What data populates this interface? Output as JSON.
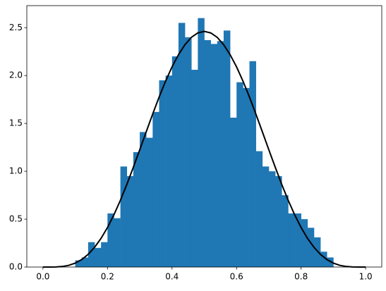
{
  "chart_data": {
    "type": "histogram",
    "bins": [
      0.1,
      0.12,
      0.14,
      0.16,
      0.18,
      0.2,
      0.22,
      0.24,
      0.26,
      0.28,
      0.3,
      0.32,
      0.34,
      0.36,
      0.38,
      0.4,
      0.42,
      0.44,
      0.46,
      0.48,
      0.5,
      0.52,
      0.54,
      0.56,
      0.58,
      0.6,
      0.62,
      0.64,
      0.66,
      0.68,
      0.7,
      0.72,
      0.74,
      0.76,
      0.78,
      0.8,
      0.82,
      0.84,
      0.86,
      0.88,
      0.9
    ],
    "values": [
      0.07,
      0.1,
      0.26,
      0.2,
      0.26,
      0.56,
      0.51,
      1.05,
      0.95,
      1.2,
      1.41,
      1.35,
      1.62,
      1.95,
      2.0,
      2.2,
      2.55,
      2.4,
      2.06,
      2.6,
      2.37,
      2.33,
      2.36,
      2.47,
      1.56,
      1.93,
      1.87,
      2.15,
      1.21,
      1.05,
      1.0,
      0.95,
      0.75,
      0.56,
      0.56,
      0.5,
      0.41,
      0.31,
      0.16,
      0.1
    ],
    "color": "#1f77b4",
    "curve": {
      "color": "#000000",
      "x": [
        0,
        0.02,
        0.04,
        0.06,
        0.08,
        0.1,
        0.12,
        0.14,
        0.16,
        0.18,
        0.2,
        0.22,
        0.24,
        0.26,
        0.28,
        0.3,
        0.32,
        0.34,
        0.36,
        0.38,
        0.4,
        0.42,
        0.44,
        0.46,
        0.48,
        0.5,
        0.52,
        0.54,
        0.56,
        0.58,
        0.6,
        0.62,
        0.64,
        0.66,
        0.68,
        0.7,
        0.72,
        0.74,
        0.76,
        0.78,
        0.8,
        0.82,
        0.84,
        0.86,
        0.88,
        0.9,
        0.92,
        0.94,
        0.96,
        0.98,
        1.0
      ],
      "values": [
        0,
        0.0,
        0.001,
        0.006,
        0.018,
        0.041,
        0.078,
        0.132,
        0.206,
        0.299,
        0.413,
        0.546,
        0.697,
        0.863,
        1.041,
        1.225,
        1.412,
        1.597,
        1.775,
        1.941,
        2.09,
        2.218,
        2.322,
        2.399,
        2.445,
        2.461,
        2.445,
        2.399,
        2.322,
        2.218,
        2.09,
        1.941,
        1.775,
        1.597,
        1.412,
        1.225,
        1.041,
        0.863,
        0.697,
        0.546,
        0.413,
        0.299,
        0.206,
        0.132,
        0.078,
        0.041,
        0.018,
        0.006,
        0.001,
        0.0,
        0
      ]
    },
    "xlim": [
      -0.05,
      1.05
    ],
    "ylim": [
      0,
      2.73
    ],
    "xticks": [
      {
        "value": 0,
        "label": "0.0"
      },
      0.2,
      0.4,
      0.6,
      0.8,
      {
        "value": 1,
        "label": "1.0"
      }
    ],
    "yticks": [
      {
        "value": 0,
        "label": "0.0"
      },
      0.5,
      {
        "value": 1,
        "label": "1.0"
      },
      1.5,
      {
        "value": 2,
        "label": "2.0"
      },
      2.5
    ]
  }
}
